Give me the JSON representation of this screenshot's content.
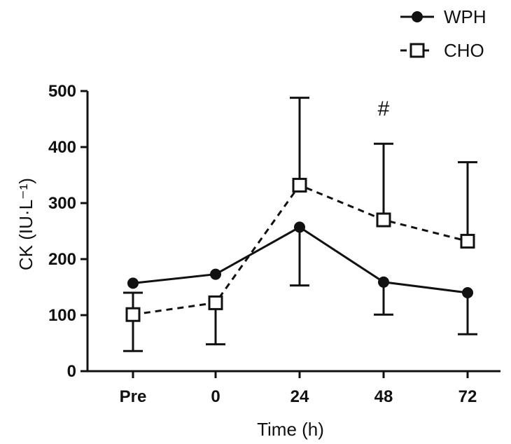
{
  "chart_data": {
    "type": "line",
    "categories": [
      "Pre",
      "0",
      "24",
      "48",
      "72"
    ],
    "xlabel": "Time (h)",
    "ylabel": "CK (IU·L⁻¹)",
    "ylim": [
      0,
      500
    ],
    "yticks": [
      0,
      100,
      200,
      300,
      400,
      500
    ],
    "grid": false,
    "legend_position": "top-right",
    "series": [
      {
        "name": "WPH",
        "marker": "filled-circle",
        "line": "solid",
        "color": "#111111",
        "values": [
          157,
          173,
          257,
          159,
          140
        ],
        "error_upper": [
          157,
          173,
          257,
          159,
          140
        ],
        "error_lower": [
          157,
          173,
          153,
          101,
          66
        ]
      },
      {
        "name": "CHO",
        "marker": "open-square",
        "line": "dashed",
        "color": "#111111",
        "values": [
          101,
          122,
          332,
          270,
          232
        ],
        "error_upper": [
          140,
          122,
          488,
          406,
          373
        ],
        "error_lower": [
          36,
          48,
          332,
          270,
          232
        ]
      }
    ],
    "annotations": [
      {
        "text": "#",
        "category": "48"
      }
    ]
  }
}
